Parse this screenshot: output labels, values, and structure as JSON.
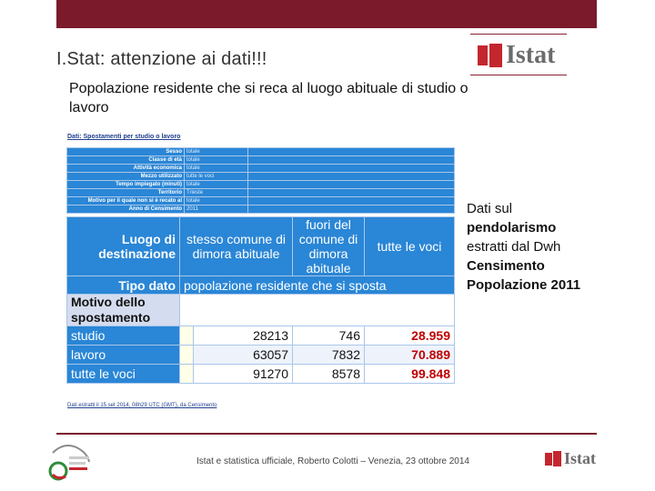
{
  "header": {
    "title": "I.Stat: attenzione ai dati!!!"
  },
  "subtitle": "Popolazione residente che si reca al luogo abituale di studio o lavoro",
  "logo": {
    "text": "Istat"
  },
  "side_note": {
    "line1": "Dati sul",
    "line2": "pendolarismo",
    "line3": "estratti dal Dwh",
    "line4": "Censimento",
    "line5": "Popolazione 2011"
  },
  "table": {
    "panel_title": "Dati: Spostamenti per studio o lavoro",
    "filters": [
      {
        "label": "Sesso",
        "value": "totale"
      },
      {
        "label": "Classe di età",
        "value": "totale"
      },
      {
        "label": "Attività economica",
        "value": "totale"
      },
      {
        "label": "Mezzo utilizzato",
        "value": "tutte le voci"
      },
      {
        "label": "Tempo impiegato (minuti)",
        "value": "totale"
      },
      {
        "label": "Territorio",
        "value": "Trieste"
      },
      {
        "label": "Motivo per il quale non si è recato al",
        "value": "totale"
      },
      {
        "label": "Anno di Censimento",
        "value": "2011"
      }
    ],
    "destination_label": "Luogo di destinazione",
    "columns": [
      "stesso comune di dimora abituale",
      "fuori del comune di dimora abituale",
      "tutte le voci"
    ],
    "tipo_label": "Tipo dato",
    "tipo_value": "popolazione residente che si sposta",
    "motivo_label": "Motivo dello spostamento",
    "rows": [
      {
        "label": "studio",
        "values": [
          "28213",
          "746",
          "28.959"
        ]
      },
      {
        "label": "lavoro",
        "values": [
          "63057",
          "7832",
          "70.889"
        ]
      },
      {
        "label": "tutte le voci",
        "values": [
          "91270",
          "8578",
          "99.848"
        ]
      }
    ],
    "footnote": "Dati estratti il 15 set 2014, 08h29 UTC (GMT), da Censimento",
    "colors": {
      "header_blue": "#2a86d6",
      "total_red": "#c00000"
    }
  },
  "footer": {
    "text": "Istat e statistica ufficiale, Roberto Colotti – Venezia, 23 ottobre 2014",
    "event_logo_text": "giornata italiana della statistica"
  },
  "colors": {
    "brand_burgundy": "#7a1a2b",
    "istat_red": "#c4262e"
  }
}
